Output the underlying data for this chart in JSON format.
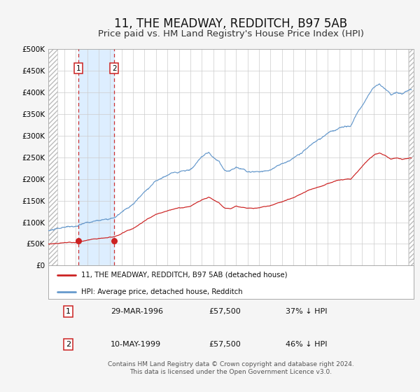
{
  "title": "11, THE MEADWAY, REDDITCH, B97 5AB",
  "subtitle": "Price paid vs. HM Land Registry's House Price Index (HPI)",
  "xmin": 1993.6,
  "xmax": 2025.5,
  "ymin": 0,
  "ymax": 500000,
  "yticks": [
    0,
    50000,
    100000,
    150000,
    200000,
    250000,
    300000,
    350000,
    400000,
    450000,
    500000
  ],
  "ytick_labels": [
    "£0",
    "£50K",
    "£100K",
    "£150K",
    "£200K",
    "£250K",
    "£300K",
    "£350K",
    "£400K",
    "£450K",
    "£500K"
  ],
  "background_color": "#f5f5f5",
  "plot_bg_color": "#ffffff",
  "grid_color": "#cccccc",
  "sale1_x": 1996.22,
  "sale1_y": 57500,
  "sale1_label": "1",
  "sale2_x": 1999.36,
  "sale2_y": 57500,
  "sale2_label": "2",
  "shade_x1": 1996.22,
  "shade_x2": 1999.36,
  "shade_color": "#ddeeff",
  "dashed_color": "#cc3333",
  "red_line_color": "#cc2222",
  "blue_line_color": "#6699cc",
  "marker_color": "#cc2222",
  "legend_label_red": "11, THE MEADWAY, REDDITCH, B97 5AB (detached house)",
  "legend_label_blue": "HPI: Average price, detached house, Redditch",
  "table_row1": [
    "1",
    "29-MAR-1996",
    "£57,500",
    "37% ↓ HPI"
  ],
  "table_row2": [
    "2",
    "10-MAY-1999",
    "£57,500",
    "46% ↓ HPI"
  ],
  "footer": "Contains HM Land Registry data © Crown copyright and database right 2024.\nThis data is licensed under the Open Government Licence v3.0.",
  "title_fontsize": 12,
  "subtitle_fontsize": 9.5,
  "hatch_left_end": 1994.42,
  "hatch_right_start": 2025.08
}
